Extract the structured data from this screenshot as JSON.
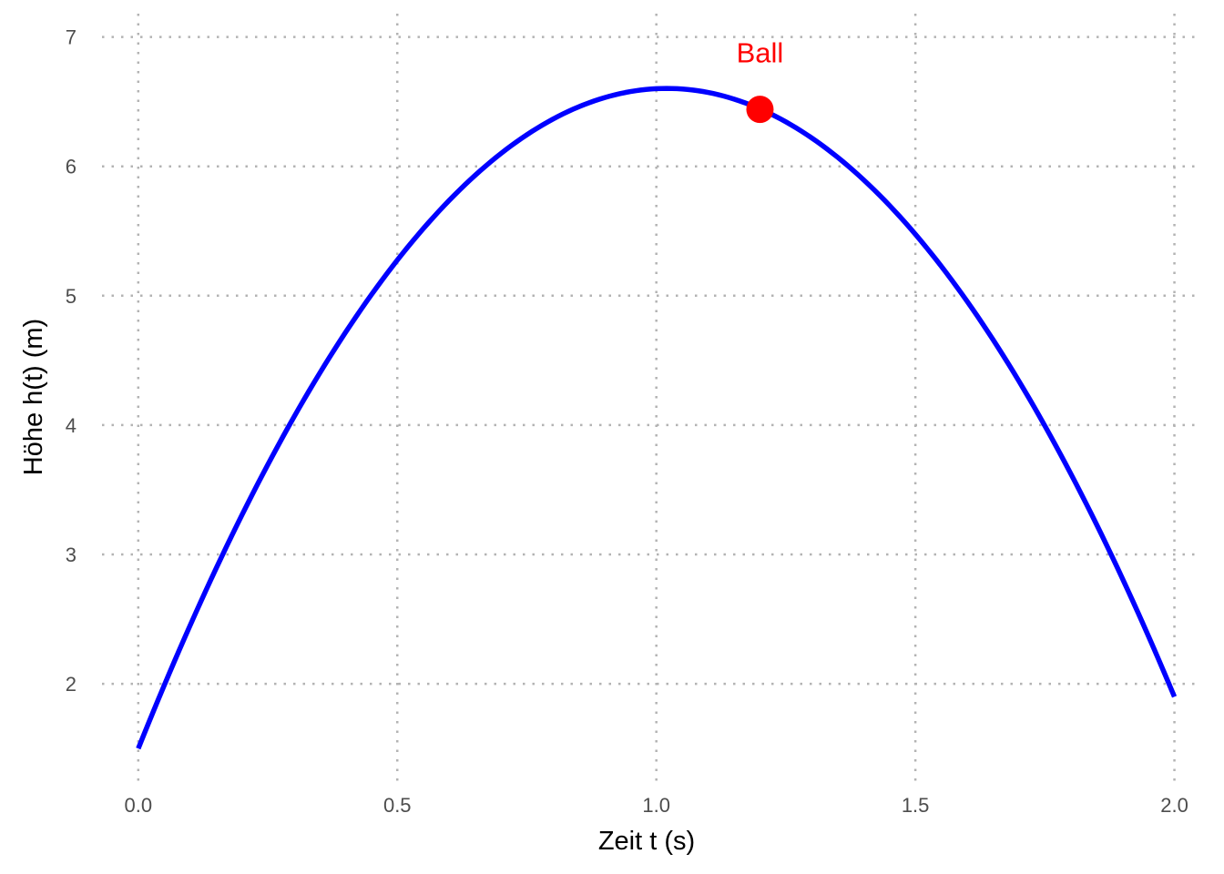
{
  "chart_data": {
    "type": "line",
    "title": "",
    "xlabel": "Zeit t (s)",
    "ylabel": "Höhe h(t) (m)",
    "xlim": [
      -0.07,
      2.05
    ],
    "ylim": [
      1.22,
      7.18
    ],
    "x_ticks": [
      0.0,
      0.5,
      1.0,
      1.5,
      2.0
    ],
    "x_tick_labels": [
      "0.0",
      "0.5",
      "1.0",
      "1.5",
      "2.0"
    ],
    "y_ticks": [
      2,
      3,
      4,
      5,
      6,
      7
    ],
    "y_tick_labels": [
      "2",
      "3",
      "4",
      "5",
      "6",
      "7"
    ],
    "grid": true,
    "series": [
      {
        "function": "h(t) = 1.5 + 10*t - 4.9*t^2",
        "x_range": [
          0,
          2
        ],
        "color": "#0000ff",
        "x": [
          0.0,
          0.2,
          0.4,
          0.6,
          0.8,
          1.0,
          1.02,
          1.2,
          1.4,
          1.6,
          1.8,
          2.0
        ],
        "y": [
          1.5,
          3.3,
          4.72,
          5.74,
          6.36,
          6.6,
          6.6,
          6.44,
          5.9,
          4.96,
          3.62,
          1.9
        ]
      }
    ],
    "marker": {
      "x": 1.2,
      "y": 6.44,
      "color": "#ff0000"
    },
    "annotation": {
      "text": "Ball",
      "x": 1.2,
      "y": 6.88,
      "color": "#ff0000"
    }
  }
}
